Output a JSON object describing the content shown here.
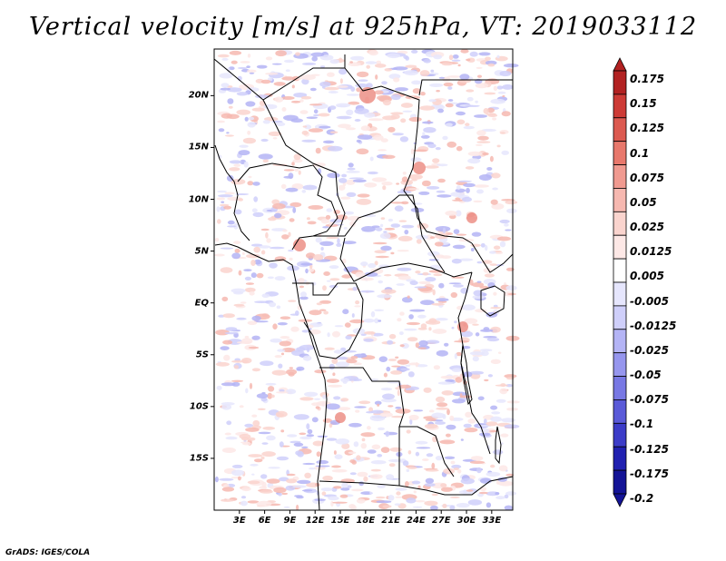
{
  "title": "Vertical velocity [m/s] at 925hPa, VT: 2019033112",
  "credit": "GrADS: IGES/COLA",
  "map": {
    "lat_range": [
      -20,
      24.5
    ],
    "lon_range": [
      0,
      35.5
    ],
    "lat_ticks": [
      {
        "label": "20N",
        "value": 20
      },
      {
        "label": "15N",
        "value": 15
      },
      {
        "label": "10N",
        "value": 10
      },
      {
        "label": "5N",
        "value": 5
      },
      {
        "label": "EQ",
        "value": 0
      },
      {
        "label": "5S",
        "value": -5
      },
      {
        "label": "10S",
        "value": -10
      },
      {
        "label": "15S",
        "value": -15
      }
    ],
    "lon_ticks": [
      {
        "label": "3E",
        "value": 3
      },
      {
        "label": "6E",
        "value": 6
      },
      {
        "label": "9E",
        "value": 9
      },
      {
        "label": "12E",
        "value": 12
      },
      {
        "label": "15E",
        "value": 15
      },
      {
        "label": "18E",
        "value": 18
      },
      {
        "label": "21E",
        "value": 21
      },
      {
        "label": "24E",
        "value": 24
      },
      {
        "label": "27E",
        "value": 27
      },
      {
        "label": "30E",
        "value": 30
      },
      {
        "label": "33E",
        "value": 33
      }
    ]
  },
  "legend": {
    "labels": [
      "0.175",
      "0.15",
      "0.125",
      "0.1",
      "0.075",
      "0.05",
      "0.025",
      "0.0125",
      "0.005",
      "-0.005",
      "-0.0125",
      "-0.025",
      "-0.05",
      "-0.075",
      "-0.1",
      "-0.125",
      "-0.175",
      "-0.2"
    ],
    "colors": [
      "#b22222",
      "#cd3b36",
      "#dc5a50",
      "#e8786c",
      "#f09a90",
      "#f6b8b0",
      "#fad4ce",
      "#fde8e6",
      "#ffffff",
      "#e6e6fd",
      "#cfcffa",
      "#b4b4f5",
      "#9696ee",
      "#7878e4",
      "#5a5ad8",
      "#3c3cc8",
      "#2020b0",
      "#141496"
    ]
  }
}
